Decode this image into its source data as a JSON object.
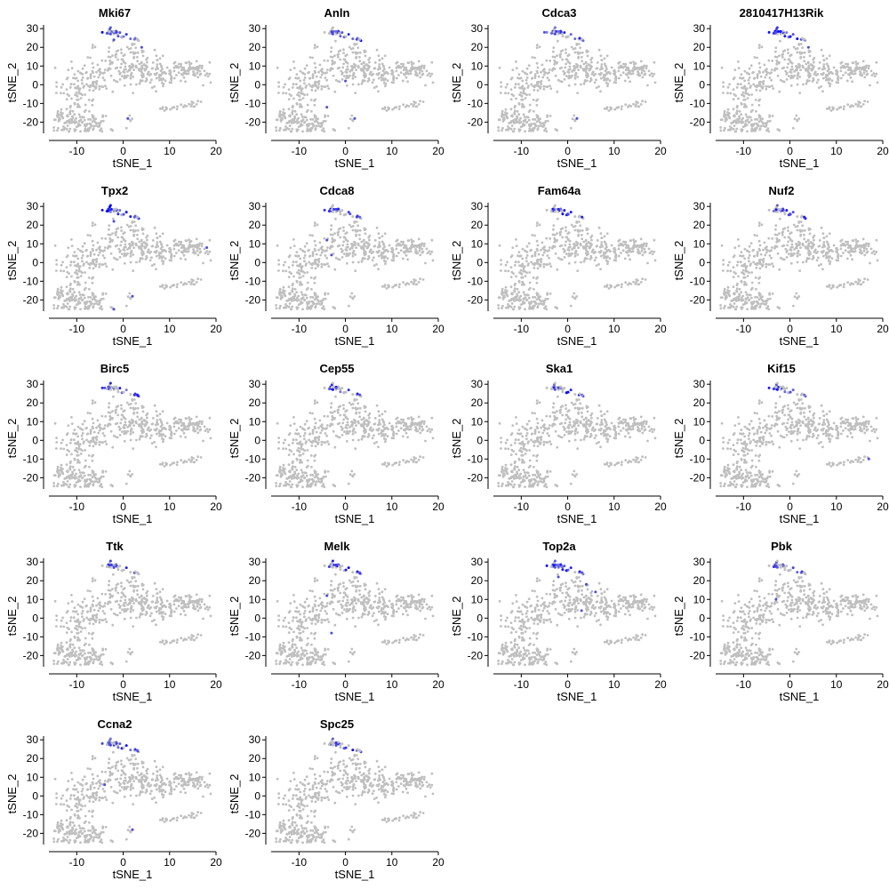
{
  "chart_data": {
    "type": "scatter",
    "layout": "4x5 grid of feature plots (18 panels)",
    "xlabel": "tSNE_1",
    "ylabel": "tSNE_2",
    "xlim": [
      -16,
      20
    ],
    "ylim": [
      -26,
      32
    ],
    "xticks": [
      -10,
      0,
      10,
      20
    ],
    "yticks": [
      -20,
      -10,
      0,
      10,
      20,
      30
    ],
    "xtick_labels": [
      "-10",
      "0",
      "10",
      "20"
    ],
    "ytick_labels": [
      "-20",
      "-10",
      "0",
      "10",
      "20",
      "30"
    ],
    "low_color": "#bfbfbf",
    "high_color": "#0000ff",
    "grid": false,
    "legend": "none",
    "panels": [
      {
        "gene": "Mki67",
        "high_count": 22,
        "extra": [
          [
            -2,
            24
          ],
          [
            1,
            -18
          ],
          [
            4,
            20
          ]
        ]
      },
      {
        "gene": "Anln",
        "high_count": 18,
        "extra": [
          [
            -4,
            -12
          ],
          [
            2,
            -18
          ],
          [
            0,
            2
          ]
        ]
      },
      {
        "gene": "Cdca3",
        "high_count": 20,
        "extra": [
          [
            2,
            -18
          ],
          [
            -5,
            28
          ]
        ]
      },
      {
        "gene": "2810417H13Rik",
        "high_count": 22,
        "extra": [
          [
            -3,
            28
          ],
          [
            4,
            20
          ]
        ]
      },
      {
        "gene": "Tpx2",
        "high_count": 24,
        "extra": [
          [
            2,
            -18
          ],
          [
            -2,
            -25
          ],
          [
            -2,
            22
          ],
          [
            18,
            8
          ]
        ]
      },
      {
        "gene": "Cdca8",
        "high_count": 14,
        "extra": [
          [
            -4,
            12
          ],
          [
            -3,
            4
          ],
          [
            1,
            26
          ]
        ]
      },
      {
        "gene": "Fam64a",
        "high_count": 12,
        "extra": [
          [
            0,
            26
          ]
        ]
      },
      {
        "gene": "Nuf2",
        "high_count": 16,
        "extra": [
          [
            0,
            26
          ]
        ]
      },
      {
        "gene": "Birc5",
        "high_count": 16,
        "extra": [
          [
            -4,
            28
          ]
        ]
      },
      {
        "gene": "Cep55",
        "high_count": 12,
        "extra": [
          [
            -2,
            28
          ]
        ]
      },
      {
        "gene": "Ska1",
        "high_count": 12,
        "extra": [
          [
            -2,
            28
          ]
        ]
      },
      {
        "gene": "Kif15",
        "high_count": 14,
        "extra": [
          [
            17,
            -10
          ]
        ]
      },
      {
        "gene": "Ttk",
        "high_count": 12,
        "extra": [
          [
            -2,
            27
          ]
        ]
      },
      {
        "gene": "Melk",
        "high_count": 14,
        "extra": [
          [
            -4,
            12
          ],
          [
            -3,
            -8
          ]
        ]
      },
      {
        "gene": "Top2a",
        "high_count": 26,
        "extra": [
          [
            4,
            18
          ],
          [
            6,
            14
          ],
          [
            3,
            4
          ],
          [
            -2,
            22
          ]
        ]
      },
      {
        "gene": "Pbk",
        "high_count": 14,
        "extra": [
          [
            -3,
            28
          ],
          [
            -3,
            10
          ]
        ]
      },
      {
        "gene": "Ccna2",
        "high_count": 22,
        "extra": [
          [
            -4,
            6
          ],
          [
            2,
            -18
          ],
          [
            -3,
            28
          ]
        ]
      },
      {
        "gene": "Spc25",
        "high_count": 14,
        "extra": [
          [
            -2,
            27
          ]
        ]
      }
    ]
  }
}
